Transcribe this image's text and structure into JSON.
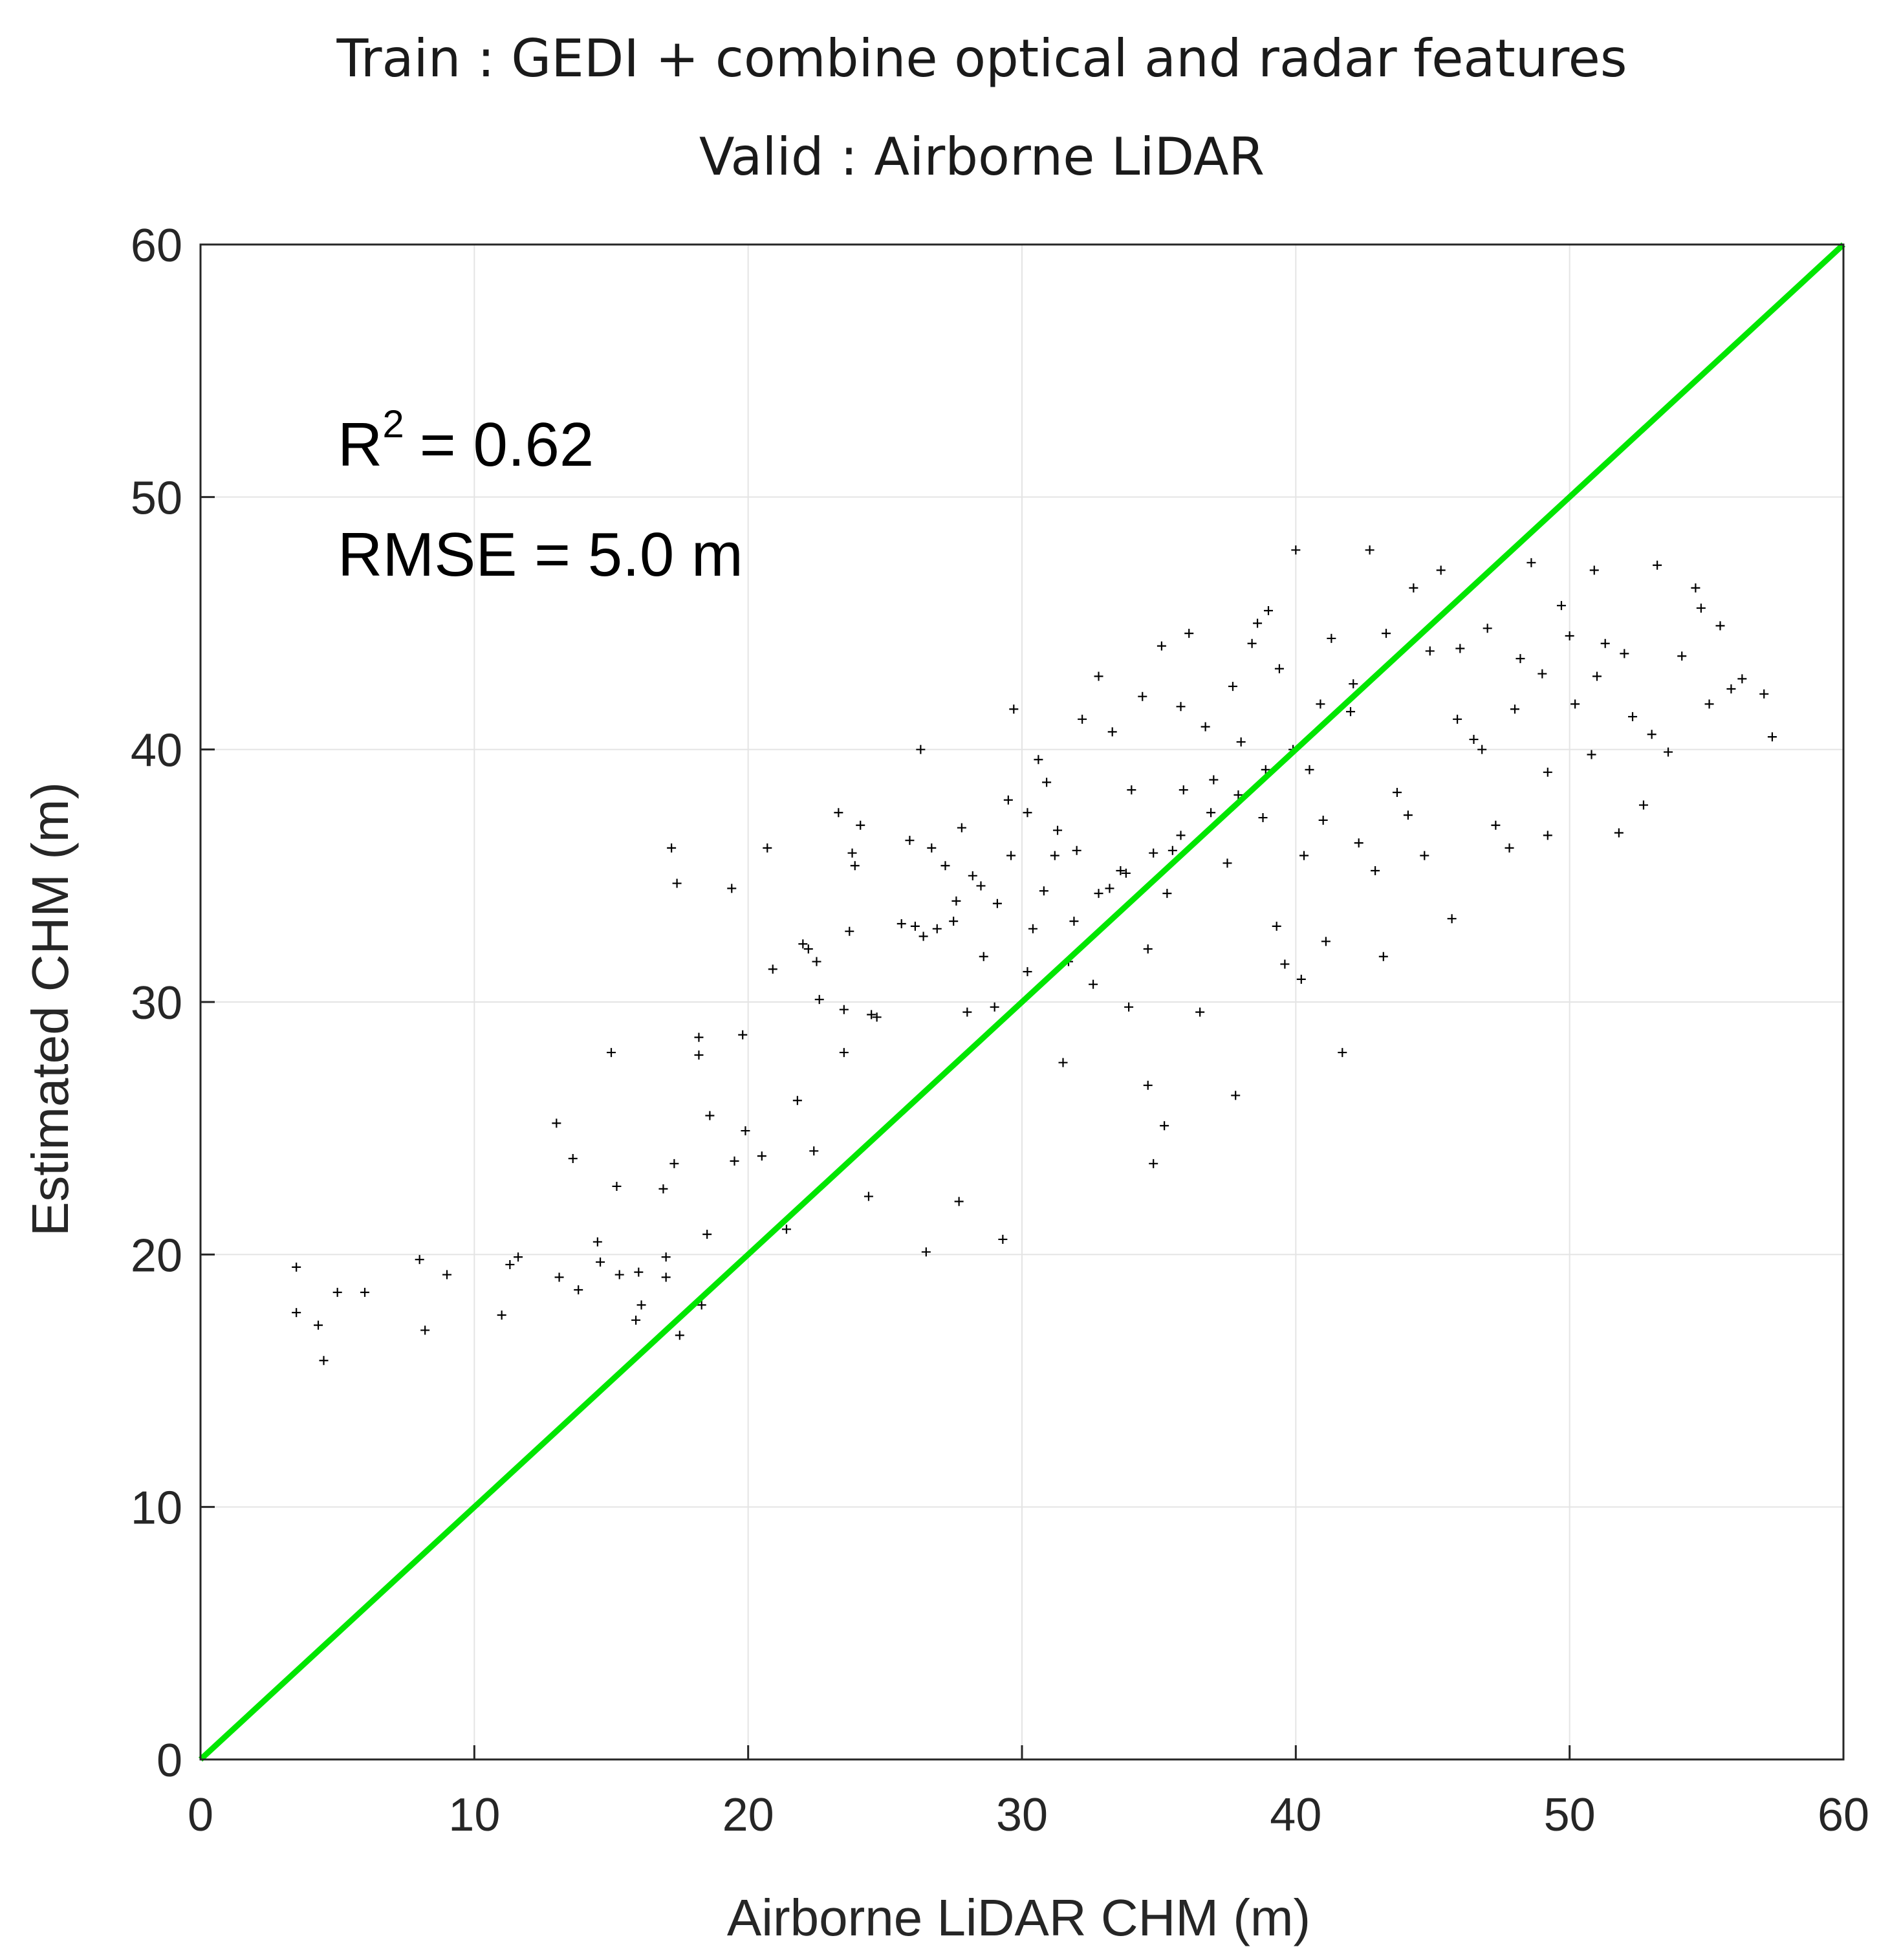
{
  "chart_data": {
    "type": "scatter",
    "title_lines": [
      "Train : GEDI + combine optical and radar features",
      "Valid : Airborne LiDAR"
    ],
    "xlabel": "Airborne LiDAR CHM (m)",
    "ylabel": "Estimated CHM (m)",
    "xlim": [
      0,
      60
    ],
    "ylim": [
      0,
      60
    ],
    "xticks": [
      "0",
      "10",
      "20",
      "30",
      "40",
      "50",
      "60"
    ],
    "yticks": [
      "0",
      "10",
      "20",
      "30",
      "40",
      "50",
      "60"
    ],
    "grid": true,
    "marker": "+",
    "marker_color": "#000000",
    "reference_line": {
      "label": "1:1 line",
      "color": "#00e600",
      "x": [
        0,
        60
      ],
      "y": [
        0,
        60
      ]
    },
    "stats": {
      "r2_prefix": "R",
      "r2_exponent": "2",
      "r2_value": "= 0.62",
      "rmse_text": "RMSE = 5.0 m"
    },
    "points": [
      [
        3.5,
        19.5
      ],
      [
        3.5,
        17.7
      ],
      [
        4.3,
        17.2
      ],
      [
        4.5,
        15.8
      ],
      [
        5.0,
        18.5
      ],
      [
        6.0,
        18.5
      ],
      [
        8.0,
        19.8
      ],
      [
        8.2,
        17.0
      ],
      [
        9.0,
        19.2
      ],
      [
        11.0,
        17.6
      ],
      [
        11.3,
        19.6
      ],
      [
        11.6,
        19.9
      ],
      [
        13.0,
        25.2
      ],
      [
        13.1,
        19.1
      ],
      [
        13.6,
        23.8
      ],
      [
        13.8,
        18.6
      ],
      [
        14.5,
        20.5
      ],
      [
        14.6,
        19.7
      ],
      [
        15.0,
        28.0
      ],
      [
        15.2,
        22.7
      ],
      [
        15.3,
        19.2
      ],
      [
        15.9,
        17.4
      ],
      [
        16.0,
        19.3
      ],
      [
        16.1,
        18.0
      ],
      [
        16.9,
        22.6
      ],
      [
        17.0,
        19.9
      ],
      [
        17.0,
        19.1
      ],
      [
        17.2,
        36.1
      ],
      [
        17.3,
        23.6
      ],
      [
        17.4,
        34.7
      ],
      [
        17.5,
        16.8
      ],
      [
        18.2,
        28.6
      ],
      [
        18.2,
        27.9
      ],
      [
        18.3,
        18.0
      ],
      [
        18.5,
        20.8
      ],
      [
        18.6,
        25.5
      ],
      [
        19.4,
        34.5
      ],
      [
        19.5,
        23.7
      ],
      [
        19.8,
        28.7
      ],
      [
        19.9,
        24.9
      ],
      [
        20.5,
        23.9
      ],
      [
        20.7,
        36.1
      ],
      [
        20.9,
        31.3
      ],
      [
        21.4,
        21.0
      ],
      [
        21.8,
        26.1
      ],
      [
        22.0,
        32.3
      ],
      [
        22.2,
        32.1
      ],
      [
        22.4,
        24.1
      ],
      [
        22.5,
        31.6
      ],
      [
        22.6,
        30.1
      ],
      [
        23.3,
        37.5
      ],
      [
        23.5,
        29.7
      ],
      [
        23.5,
        28.0
      ],
      [
        23.7,
        32.8
      ],
      [
        23.8,
        35.9
      ],
      [
        23.9,
        35.4
      ],
      [
        24.1,
        37.0
      ],
      [
        24.4,
        22.3
      ],
      [
        24.5,
        29.5
      ],
      [
        24.7,
        29.4
      ],
      [
        26.1,
        33.0
      ],
      [
        26.3,
        40.0
      ],
      [
        26.5,
        20.1
      ],
      [
        26.7,
        36.1
      ],
      [
        27.2,
        35.4
      ],
      [
        27.5,
        33.2
      ],
      [
        27.7,
        22.1
      ],
      [
        27.8,
        36.9
      ],
      [
        28.0,
        29.6
      ],
      [
        28.5,
        34.6
      ],
      [
        29.0,
        29.8
      ],
      [
        29.3,
        20.6
      ],
      [
        29.5,
        38.0
      ],
      [
        29.7,
        41.6
      ],
      [
        30.2,
        37.5
      ],
      [
        30.4,
        32.9
      ],
      [
        30.6,
        39.6
      ],
      [
        30.9,
        38.7
      ],
      [
        31.2,
        35.8
      ],
      [
        31.5,
        27.6
      ],
      [
        31.7,
        31.6
      ],
      [
        32.0,
        36.0
      ],
      [
        32.2,
        41.2
      ],
      [
        32.8,
        42.9
      ],
      [
        33.3,
        40.7
      ],
      [
        33.6,
        35.2
      ],
      [
        34.0,
        38.4
      ],
      [
        34.4,
        42.1
      ],
      [
        34.6,
        26.7
      ],
      [
        34.8,
        23.6
      ],
      [
        35.1,
        44.1
      ],
      [
        35.2,
        25.1
      ],
      [
        35.5,
        36.0
      ],
      [
        35.8,
        41.7
      ],
      [
        36.1,
        44.6
      ],
      [
        36.5,
        29.6
      ],
      [
        37.0,
        38.8
      ],
      [
        37.5,
        35.5
      ],
      [
        37.8,
        26.3
      ],
      [
        38.0,
        40.3
      ],
      [
        38.4,
        44.2
      ],
      [
        38.8,
        37.3
      ],
      [
        39.0,
        45.5
      ],
      [
        39.3,
        33.0
      ],
      [
        39.6,
        31.5
      ],
      [
        40.0,
        47.9
      ],
      [
        40.2,
        30.9
      ],
      [
        40.5,
        39.2
      ],
      [
        41.0,
        37.2
      ],
      [
        41.3,
        44.4
      ],
      [
        41.7,
        28.0
      ],
      [
        42.0,
        41.5
      ],
      [
        42.3,
        36.3
      ],
      [
        42.7,
        47.9
      ],
      [
        43.2,
        31.8
      ],
      [
        43.7,
        38.3
      ],
      [
        44.3,
        46.4
      ],
      [
        44.7,
        35.8
      ],
      [
        45.3,
        47.1
      ],
      [
        45.7,
        33.3
      ],
      [
        46.0,
        44.0
      ],
      [
        46.5,
        40.4
      ],
      [
        47.3,
        37.0
      ],
      [
        47.8,
        36.1
      ],
      [
        48.2,
        43.6
      ],
      [
        48.6,
        47.4
      ],
      [
        49.2,
        39.1
      ],
      [
        49.7,
        45.7
      ],
      [
        50.2,
        41.8
      ],
      [
        50.8,
        39.8
      ],
      [
        51.3,
        44.2
      ],
      [
        51.8,
        36.7
      ],
      [
        52.3,
        41.3
      ],
      [
        52.7,
        37.8
      ],
      [
        53.2,
        47.3
      ],
      [
        53.6,
        39.9
      ],
      [
        54.1,
        43.7
      ],
      [
        54.6,
        46.4
      ],
      [
        54.8,
        45.6
      ],
      [
        55.1,
        41.8
      ],
      [
        55.5,
        44.9
      ],
      [
        55.9,
        42.4
      ],
      [
        56.3,
        42.8
      ],
      [
        57.1,
        42.2
      ],
      [
        57.4,
        40.5
      ],
      [
        49.2,
        36.6
      ],
      [
        50.9,
        47.1
      ],
      [
        46.8,
        40.0
      ],
      [
        44.1,
        37.4
      ],
      [
        42.9,
        35.2
      ],
      [
        41.1,
        32.4
      ],
      [
        40.3,
        35.8
      ],
      [
        39.4,
        43.2
      ],
      [
        38.6,
        45.0
      ],
      [
        37.7,
        42.5
      ],
      [
        36.7,
        40.9
      ],
      [
        35.9,
        38.4
      ],
      [
        35.3,
        34.3
      ],
      [
        34.6,
        32.1
      ],
      [
        33.9,
        29.8
      ],
      [
        33.2,
        34.5
      ],
      [
        32.6,
        30.7
      ],
      [
        31.9,
        33.2
      ],
      [
        31.3,
        36.8
      ],
      [
        30.8,
        34.4
      ],
      [
        30.2,
        31.2
      ],
      [
        29.6,
        35.8
      ],
      [
        29.1,
        33.9
      ],
      [
        28.6,
        31.8
      ],
      [
        28.2,
        35.0
      ],
      [
        27.6,
        34.0
      ],
      [
        26.9,
        32.9
      ],
      [
        26.4,
        32.6
      ],
      [
        25.9,
        36.4
      ],
      [
        25.6,
        33.1
      ],
      [
        44.9,
        43.9
      ],
      [
        45.9,
        41.2
      ],
      [
        47.0,
        44.8
      ],
      [
        48.0,
        41.6
      ],
      [
        49.0,
        43.0
      ],
      [
        50.0,
        44.5
      ],
      [
        51.0,
        42.9
      ],
      [
        52.0,
        43.8
      ],
      [
        53.0,
        40.6
      ],
      [
        43.3,
        44.6
      ],
      [
        42.1,
        42.6
      ],
      [
        40.9,
        41.8
      ],
      [
        39.9,
        40.0
      ],
      [
        38.9,
        39.2
      ],
      [
        37.9,
        38.2
      ],
      [
        36.9,
        37.5
      ],
      [
        35.8,
        36.6
      ],
      [
        34.8,
        35.9
      ],
      [
        33.8,
        35.1
      ],
      [
        32.8,
        34.3
      ]
    ]
  }
}
